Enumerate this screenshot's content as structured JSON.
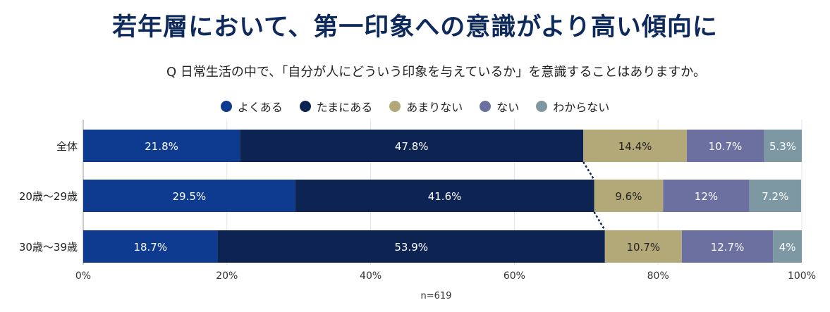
{
  "title": "若年層において、第一印象への意識がより高い傾向に",
  "question": "Q 日常生活の中で、「自分が人にどういう印象を与えているか」を意識することはありますか。",
  "note": "n=619",
  "chart_data": {
    "type": "bar",
    "orientation": "horizontal",
    "stacked": true,
    "categories": [
      "全体",
      "20歳〜29歳",
      "30歳〜39歳"
    ],
    "series": [
      {
        "name": "よくある",
        "color": "#0e3b8f",
        "values": [
          21.8,
          29.5,
          18.7
        ],
        "labels": [
          "21.8%",
          "29.5%",
          "18.7%"
        ]
      },
      {
        "name": "たまにある",
        "color": "#0d2452",
        "values": [
          47.8,
          41.6,
          53.9
        ],
        "labels": [
          "47.8%",
          "41.6%",
          "53.9%"
        ]
      },
      {
        "name": "あまりない",
        "color": "#b3a978",
        "values": [
          14.4,
          9.6,
          10.7
        ],
        "labels": [
          "14.4%",
          "9.6%",
          "10.7%"
        ]
      },
      {
        "name": "ない",
        "color": "#6b70a0",
        "values": [
          10.7,
          12,
          12.7
        ],
        "labels": [
          "10.7%",
          "12%",
          "12.7%"
        ]
      },
      {
        "name": "わからない",
        "color": "#7d98a2",
        "values": [
          5.3,
          7.2,
          4
        ],
        "labels": [
          "5.3%",
          "7.2%",
          "4%"
        ]
      }
    ],
    "xlim": [
      0,
      100
    ],
    "xticks": [
      "0%",
      "20%",
      "40%",
      "60%",
      "80%",
      "100%"
    ],
    "legend_position": "top",
    "grid": true,
    "connector_lines": true
  }
}
